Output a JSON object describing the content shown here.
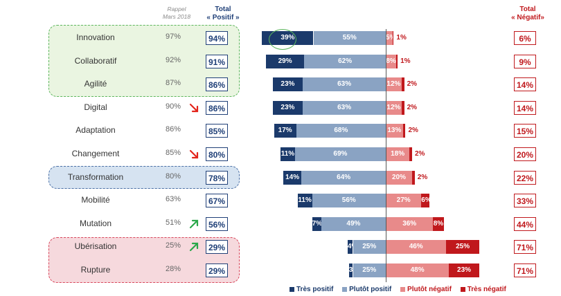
{
  "header": {
    "rappel_line1": "Rappel",
    "rappel_line2": "Mars 2018",
    "total_pos_line1": "Total",
    "total_pos_line2": "« Positif »",
    "total_neg_line1": "Total",
    "total_neg_line2": "« Négatif»"
  },
  "colors": {
    "tres_positif": "#1b3a6b",
    "plutot_positif": "#8aa3c3",
    "plutot_negatif": "#e88a8a",
    "tres_negatif": "#c0181c",
    "arrow_down": "#e3241b",
    "arrow_up": "#2aa84a"
  },
  "rows": [
    {
      "label": "Innovation",
      "rappel": "97%",
      "total_pos": "94%",
      "total_neg": "6%",
      "tp": 39,
      "pp": 55,
      "pn": 5,
      "tn": 1,
      "tp_label": "39%",
      "pp_label": "55%",
      "pn_label": "5%",
      "tn_label": "1%",
      "trend": ""
    },
    {
      "label": "Collaboratif",
      "rappel": "92%",
      "total_pos": "91%",
      "total_neg": "9%",
      "tp": 29,
      "pp": 62,
      "pn": 8,
      "tn": 1,
      "tp_label": "29%",
      "pp_label": "62%",
      "pn_label": "8%",
      "tn_label": "1%",
      "trend": ""
    },
    {
      "label": "Agilité",
      "rappel": "87%",
      "total_pos": "86%",
      "total_neg": "14%",
      "tp": 23,
      "pp": 63,
      "pn": 12,
      "tn": 2,
      "tp_label": "23%",
      "pp_label": "63%",
      "pn_label": "12%",
      "tn_label": "2%",
      "trend": ""
    },
    {
      "label": "Digital",
      "rappel": "90%",
      "total_pos": "86%",
      "total_neg": "14%",
      "tp": 23,
      "pp": 63,
      "pn": 12,
      "tn": 2,
      "tp_label": "23%",
      "pp_label": "63%",
      "pn_label": "12%",
      "tn_label": "2%",
      "trend": "down"
    },
    {
      "label": "Adaptation",
      "rappel": "86%",
      "total_pos": "85%",
      "total_neg": "15%",
      "tp": 17,
      "pp": 68,
      "pn": 13,
      "tn": 2,
      "tp_label": "17%",
      "pp_label": "68%",
      "pn_label": "13%",
      "tn_label": "2%",
      "trend": ""
    },
    {
      "label": "Changement",
      "rappel": "85%",
      "total_pos": "80%",
      "total_neg": "20%",
      "tp": 11,
      "pp": 69,
      "pn": 18,
      "tn": 2,
      "tp_label": "11%",
      "pp_label": "69%",
      "pn_label": "18%",
      "tn_label": "2%",
      "trend": "down"
    },
    {
      "label": "Transformation",
      "rappel": "80%",
      "total_pos": "78%",
      "total_neg": "22%",
      "tp": 14,
      "pp": 64,
      "pn": 20,
      "tn": 2,
      "tp_label": "14%",
      "pp_label": "64%",
      "pn_label": "20%",
      "tn_label": "2%",
      "trend": ""
    },
    {
      "label": "Mobilité",
      "rappel": "63%",
      "total_pos": "67%",
      "total_neg": "33%",
      "tp": 11,
      "pp": 56,
      "pn": 27,
      "tn": 6,
      "tp_label": "11%",
      "pp_label": "56%",
      "pn_label": "27%",
      "tn_label": "6%",
      "trend": ""
    },
    {
      "label": "Mutation",
      "rappel": "51%",
      "total_pos": "56%",
      "total_neg": "44%",
      "tp": 7,
      "pp": 49,
      "pn": 36,
      "tn": 8,
      "tp_label": "7%",
      "pp_label": "49%",
      "pn_label": "36%",
      "tn_label": "8%",
      "trend": "up"
    },
    {
      "label": "Ubérisation",
      "rappel": "25%",
      "total_pos": "29%",
      "total_neg": "71%",
      "tp": 4,
      "pp": 25,
      "pn": 46,
      "tn": 25,
      "tp_label": "4%",
      "pp_label": "25%",
      "pn_label": "46%",
      "tn_label": "25%",
      "trend": "up"
    },
    {
      "label": "Rupture",
      "rappel": "28%",
      "total_pos": "29%",
      "total_neg": "71%",
      "tp": 3,
      "pp": 25,
      "pn": 48,
      "tn": 23,
      "tp_label": "3%",
      "pp_label": "25%",
      "pn_label": "48%",
      "tn_label": "23%",
      "trend": ""
    }
  ],
  "legend": [
    "Très positif",
    "Plutôt positif",
    "Plutôt négatif",
    "Très négatif"
  ],
  "chart_data": {
    "type": "bar",
    "orientation": "horizontal-diverging-stacked",
    "categories": [
      "Innovation",
      "Collaboratif",
      "Agilité",
      "Digital",
      "Adaptation",
      "Changement",
      "Transformation",
      "Mobilité",
      "Mutation",
      "Ubérisation",
      "Rupture"
    ],
    "series": [
      {
        "name": "Très positif",
        "values": [
          39,
          29,
          23,
          23,
          17,
          11,
          14,
          11,
          7,
          4,
          3
        ]
      },
      {
        "name": "Plutôt positif",
        "values": [
          55,
          62,
          63,
          63,
          68,
          69,
          64,
          56,
          49,
          25,
          25
        ]
      },
      {
        "name": "Plutôt négatif",
        "values": [
          5,
          8,
          12,
          12,
          13,
          18,
          20,
          27,
          36,
          46,
          48
        ]
      },
      {
        "name": "Très négatif",
        "values": [
          1,
          1,
          2,
          2,
          2,
          2,
          2,
          6,
          8,
          25,
          23
        ]
      }
    ],
    "rappel_mars_2018": [
      97,
      92,
      87,
      90,
      86,
      85,
      80,
      63,
      51,
      25,
      28
    ],
    "total_positif": [
      94,
      91,
      86,
      86,
      85,
      80,
      78,
      67,
      56,
      29,
      29
    ],
    "total_negatif": [
      6,
      9,
      14,
      14,
      15,
      20,
      22,
      33,
      44,
      71,
      71
    ],
    "legend_position": "bottom"
  }
}
